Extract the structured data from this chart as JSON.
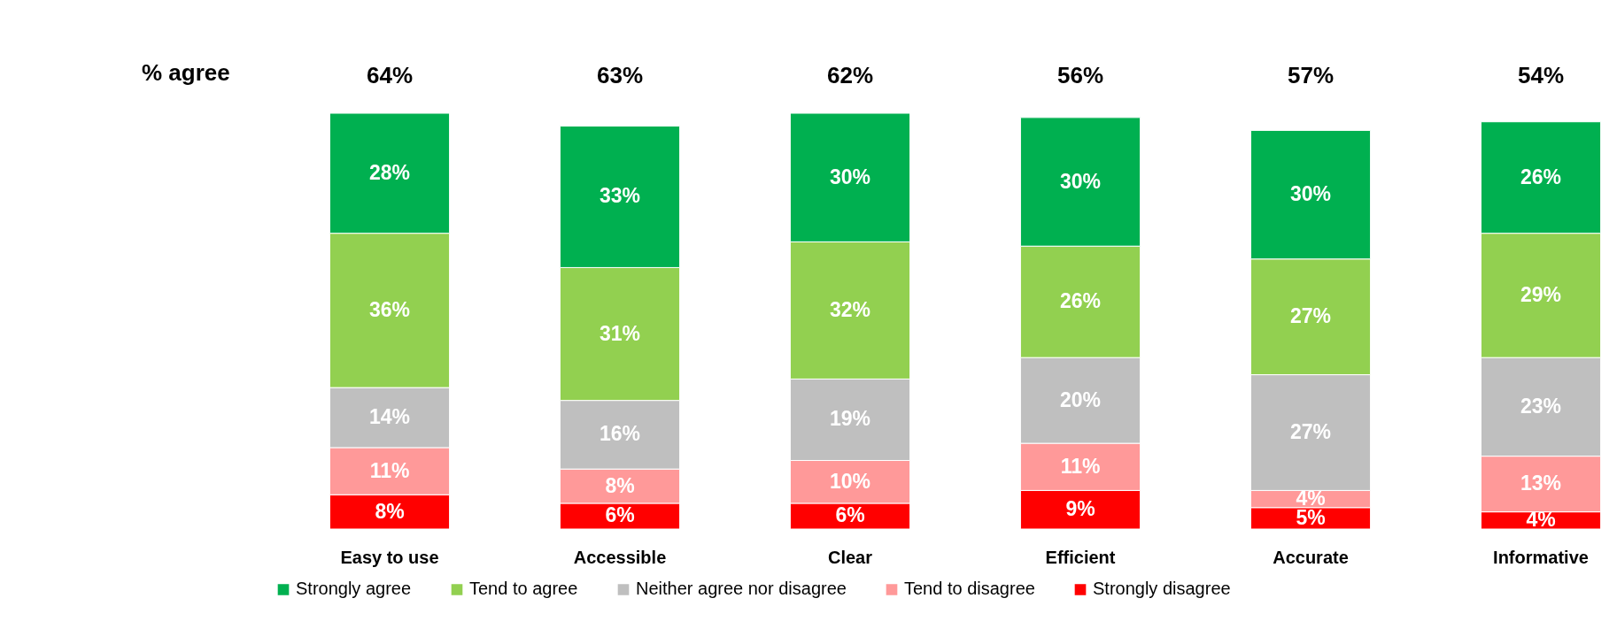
{
  "chart_data": {
    "type": "bar",
    "stacked": true,
    "legend": "bottom",
    "categories": [
      "Easy to use",
      "Accessible",
      "Clear",
      "Efficient",
      "Accurate",
      "Informative"
    ],
    "series": [
      {
        "name": "Strongly disagree",
        "color": "#ff0000",
        "values": [
          8,
          6,
          6,
          9,
          5,
          4
        ],
        "value_labels": [
          "8%",
          "6%",
          "6%",
          "9%",
          "5%",
          "4%"
        ]
      },
      {
        "name": "Tend to disagree",
        "color": "#ff9999",
        "values": [
          11,
          8,
          10,
          11,
          4,
          13
        ],
        "value_labels": [
          "11%",
          "8%",
          "10%",
          "11%",
          "4%",
          "13%"
        ]
      },
      {
        "name": "Neither agree nor disagree",
        "color": "#bfbfbf",
        "values": [
          14,
          16,
          19,
          20,
          27,
          23
        ],
        "value_labels": [
          "14%",
          "16%",
          "19%",
          "20%",
          "27%",
          "23%"
        ]
      },
      {
        "name": "Tend to agree",
        "color": "#92d050",
        "values": [
          36,
          31,
          32,
          26,
          27,
          29
        ],
        "value_labels": [
          "36%",
          "31%",
          "32%",
          "26%",
          "27%",
          "29%"
        ]
      },
      {
        "name": "Strongly agree",
        "color": "#00b050",
        "values": [
          28,
          33,
          30,
          30,
          30,
          26
        ],
        "value_labels": [
          "28%",
          "33%",
          "30%",
          "30%",
          "30%",
          "26%"
        ]
      }
    ],
    "annotations": [
      "% agree",
      "64%",
      "63%",
      "62%",
      "56%",
      "57%",
      "54%"
    ]
  }
}
